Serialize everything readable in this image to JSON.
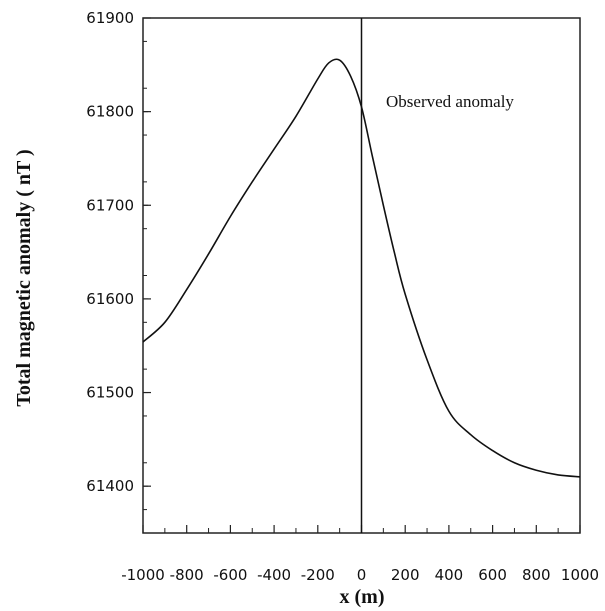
{
  "chart_data": {
    "type": "line",
    "title": "",
    "xlabel": "x (m)",
    "ylabel": "Total magnetic anomaly ( nT )",
    "xlim": [
      -1000,
      1000
    ],
    "ylim": [
      61350,
      61900
    ],
    "x_ticks": [
      -1000,
      -800,
      -600,
      -400,
      -200,
      0,
      200,
      400,
      600,
      800,
      1000
    ],
    "x_tick_labels": [
      "-1000",
      "-800",
      "-600",
      "-400",
      "-200",
      "0",
      "200",
      "400",
      "600",
      "800",
      "1000"
    ],
    "y_ticks": [
      61400,
      61500,
      61600,
      61700,
      61800,
      61900
    ],
    "y_tick_labels": [
      "61400",
      "61500",
      "61600",
      "61700",
      "61800",
      "61900"
    ],
    "grid": false,
    "annotation": "Observed anomaly",
    "vertical_line_x": 0,
    "series": [
      {
        "x": [
          -1000,
          -900,
          -800,
          -700,
          -600,
          -500,
          -400,
          -300,
          -200,
          -150,
          -100,
          -50,
          0,
          50,
          100,
          150,
          200,
          300,
          400,
          500,
          600,
          700,
          800,
          900,
          1000
        ],
        "values": [
          61554,
          61575,
          61610,
          61648,
          61688,
          61725,
          61760,
          61795,
          61835,
          61852,
          61855,
          61838,
          61805,
          61752,
          61700,
          61650,
          61605,
          61535,
          61480,
          61455,
          61438,
          61425,
          61417,
          61412,
          61410
        ]
      }
    ]
  }
}
